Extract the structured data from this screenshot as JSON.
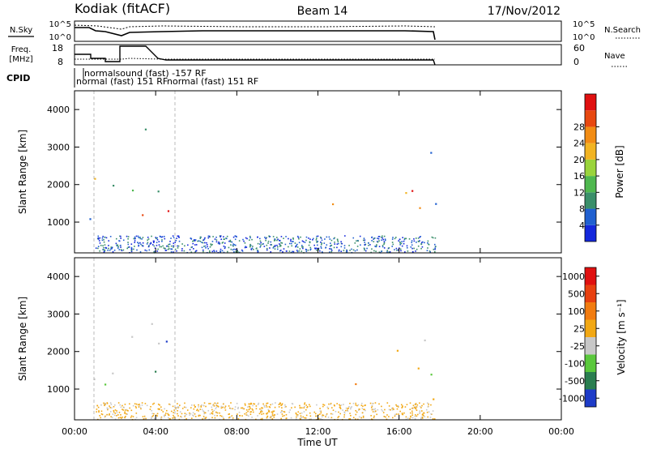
{
  "header": {
    "station": "Kodiak (fitACF)",
    "beam": "Beam 14",
    "date": "17/Nov/2012"
  },
  "top_panels": {
    "noise": {
      "left_label": "N.Sky",
      "right_label": "N.Search",
      "left_ticks": [
        "10^5",
        "10^0"
      ],
      "right_ticks": [
        "10^5",
        "10^0"
      ]
    },
    "freq": {
      "left_label_top": "Freq.",
      "left_label_bottom": "[MHz]",
      "right_label": "Nave",
      "left_ticks": [
        "18",
        "8"
      ],
      "right_ticks": [
        "60",
        "0"
      ]
    },
    "cpid": {
      "label": "CPID",
      "entries": [
        "normalsound (fast) -157 RF",
        "normal (fast) 151 RF",
        "normal (fast) 151 RF"
      ]
    }
  },
  "chart_data": [
    {
      "type": "heatmap",
      "name": "power",
      "ylabel": "Slant Range [km]",
      "yticks": [
        "1000",
        "2000",
        "3000",
        "4000"
      ],
      "ylim": [
        180,
        4500
      ],
      "colorbar": {
        "label": "Power [dB]",
        "ticks": [
          "4",
          "8",
          "12",
          "16",
          "20",
          "24",
          "28"
        ],
        "colors": [
          "#1428dc",
          "#2060d0",
          "#3a8f6a",
          "#4fb84f",
          "#9ad43c",
          "#f2b422",
          "#f28c14",
          "#e84810",
          "#e01010"
        ]
      }
    },
    {
      "type": "heatmap",
      "name": "velocity",
      "ylabel": "Slant Range [km]",
      "xlabel": "Time UT",
      "yticks": [
        "1000",
        "2000",
        "3000",
        "4000"
      ],
      "xticks": [
        "00:00",
        "04:00",
        "08:00",
        "12:00",
        "16:00",
        "20:00",
        "00:00"
      ],
      "ylim": [
        180,
        4500
      ],
      "colorbar": {
        "label": "Velocity [m s⁻¹]",
        "ticks": [
          "1000",
          "500",
          "100",
          "25",
          "-25",
          "-100",
          "-500",
          "-1000"
        ],
        "colors": [
          "#1e3cc8",
          "#2a7e50",
          "#5ac83c",
          "#c8c8c8",
          "#f2a814",
          "#f27c10",
          "#e84010",
          "#e01010"
        ]
      }
    }
  ]
}
